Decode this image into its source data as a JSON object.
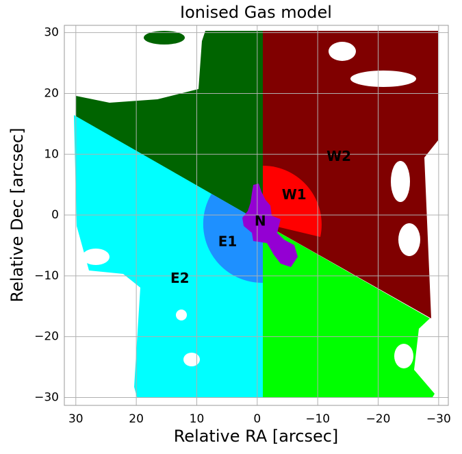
{
  "chart_data": {
    "type": "region-map",
    "title": "Ionised Gas model",
    "x_label": "Relative RA [arcsec]",
    "y_label": "Relative Dec [arcsec]",
    "xlim": [
      31.9,
      -31.6
    ],
    "ylim": [
      -31.3,
      31.2
    ],
    "xticks": [
      30,
      20,
      10,
      0,
      {
        "value": -10,
        "label": "−10"
      },
      {
        "value": -20,
        "label": "−20"
      },
      {
        "value": -30,
        "label": "−30"
      }
    ],
    "yticks": [
      {
        "value": -30,
        "label": "−30"
      },
      {
        "value": -20,
        "label": "−20"
      },
      {
        "value": -10,
        "label": "−10"
      },
      0,
      10,
      20,
      30
    ],
    "grid": true,
    "regions": [
      {
        "name": "N",
        "color": "#9400d3",
        "x": -0.5,
        "y": -1.1
      },
      {
        "name": "E1",
        "color": "#1e90ff",
        "x": 4.9,
        "y": -4.5
      },
      {
        "name": "E2",
        "color": "#00ffff",
        "x": 12.8,
        "y": -10.5
      },
      {
        "name": "W1",
        "color": "#ff0000",
        "x": -6.1,
        "y": 3.2
      },
      {
        "name": "W2",
        "color": "#800000",
        "x": -13.5,
        "y": 9.5
      }
    ]
  }
}
